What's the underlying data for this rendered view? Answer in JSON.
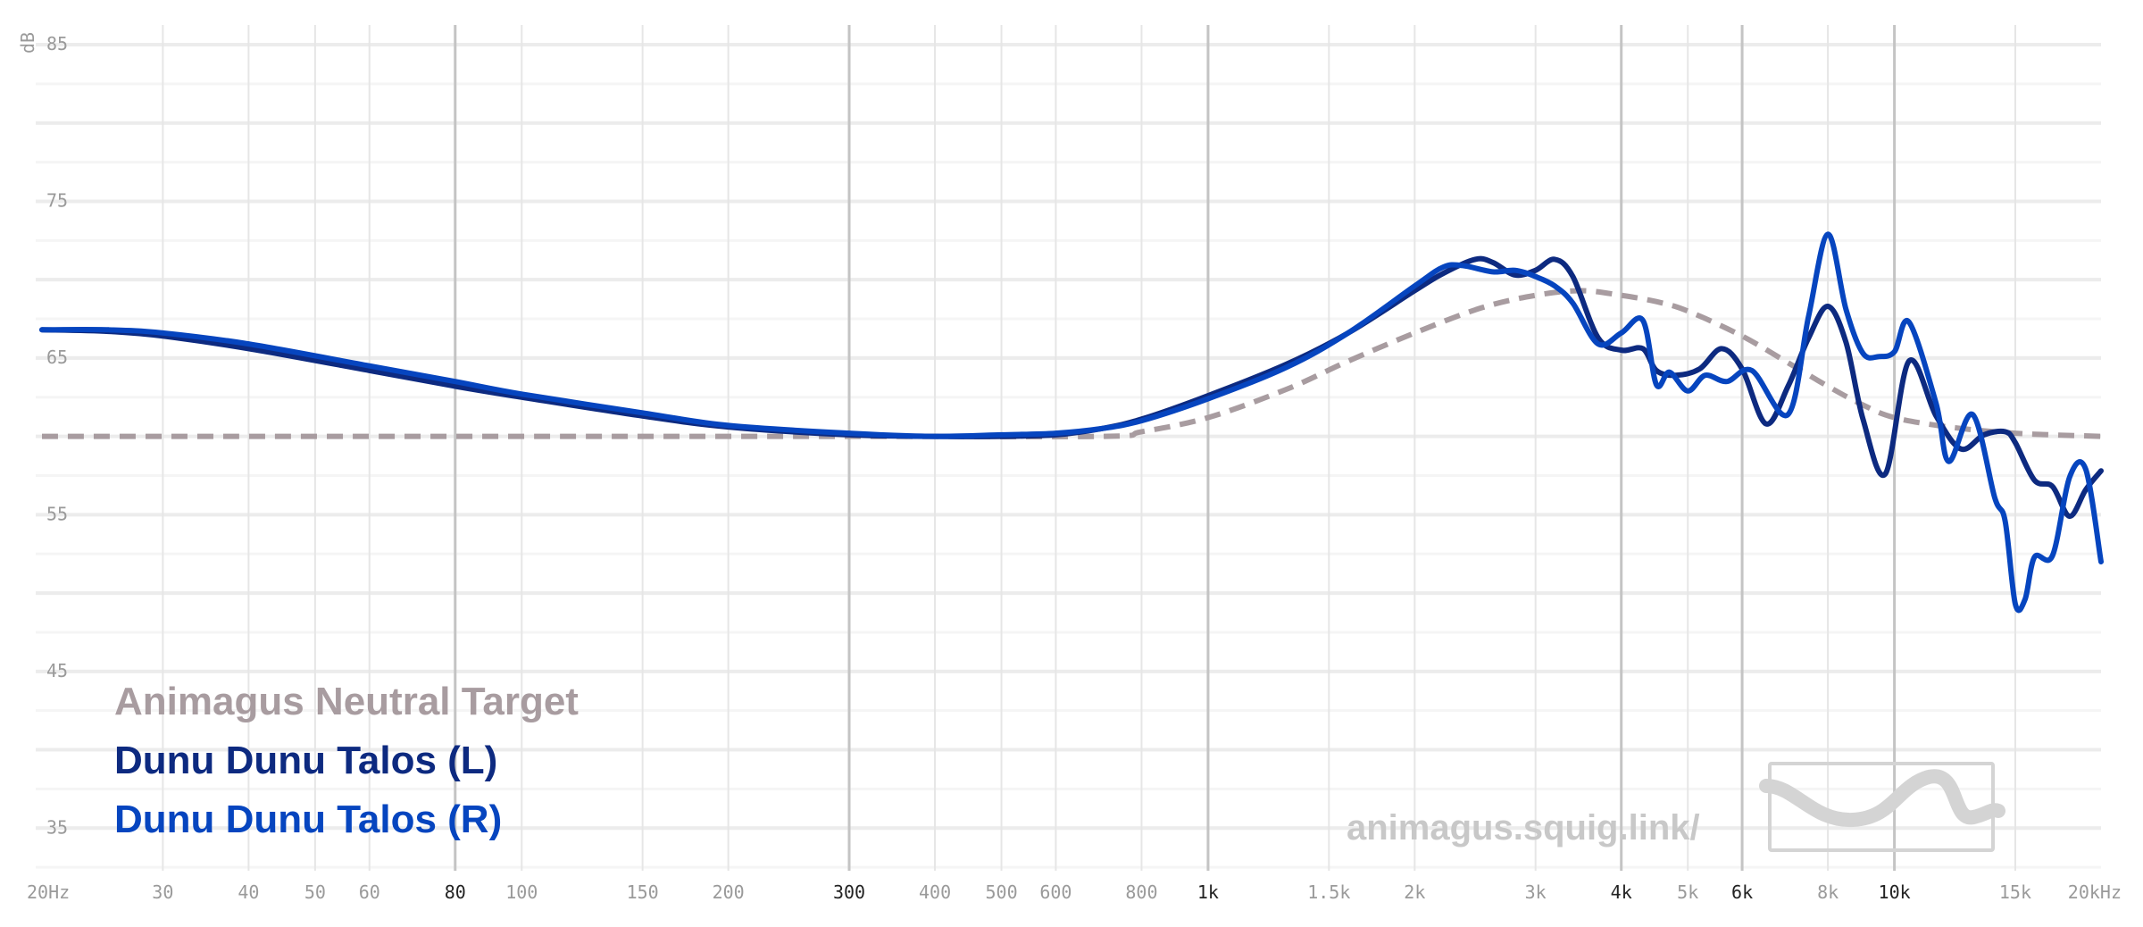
{
  "chart_data": {
    "type": "line",
    "xscale": "log",
    "xlim": [
      20,
      20000
    ],
    "ylim": [
      30,
      85
    ],
    "ylabel": "dB",
    "grid": true,
    "legend_position": "bottom-left",
    "y_ticks": [
      {
        "value": 85,
        "label": "85"
      },
      {
        "value": 75,
        "label": "75"
      },
      {
        "value": 65,
        "label": "65"
      },
      {
        "value": 55,
        "label": "55"
      },
      {
        "value": 45,
        "label": "45"
      },
      {
        "value": 35,
        "label": "35"
      }
    ],
    "x_ticks": [
      {
        "value": 20,
        "label": "20Hz",
        "major": false
      },
      {
        "value": 30,
        "label": "30",
        "major": false
      },
      {
        "value": 40,
        "label": "40",
        "major": false
      },
      {
        "value": 50,
        "label": "50",
        "major": false
      },
      {
        "value": 60,
        "label": "60",
        "major": false
      },
      {
        "value": 80,
        "label": "80",
        "major": true
      },
      {
        "value": 100,
        "label": "100",
        "major": false
      },
      {
        "value": 150,
        "label": "150",
        "major": false
      },
      {
        "value": 200,
        "label": "200",
        "major": false
      },
      {
        "value": 300,
        "label": "300",
        "major": true
      },
      {
        "value": 400,
        "label": "400",
        "major": false
      },
      {
        "value": 500,
        "label": "500",
        "major": false
      },
      {
        "value": 600,
        "label": "600",
        "major": false
      },
      {
        "value": 800,
        "label": "800",
        "major": false
      },
      {
        "value": 1000,
        "label": "1k",
        "major": true
      },
      {
        "value": 1500,
        "label": "1.5k",
        "major": false
      },
      {
        "value": 2000,
        "label": "2k",
        "major": false
      },
      {
        "value": 3000,
        "label": "3k",
        "major": false
      },
      {
        "value": 4000,
        "label": "4k",
        "major": true
      },
      {
        "value": 5000,
        "label": "5k",
        "major": false
      },
      {
        "value": 6000,
        "label": "6k",
        "major": true
      },
      {
        "value": 8000,
        "label": "8k",
        "major": false
      },
      {
        "value": 10000,
        "label": "10k",
        "major": true
      },
      {
        "value": 15000,
        "label": "15k",
        "major": false
      },
      {
        "value": 20000,
        "label": "20kHz",
        "major": false
      }
    ],
    "series": [
      {
        "name": "Animagus Neutral Target",
        "color": "#a89ca0",
        "dashed": true,
        "x": [
          20,
          100,
          300,
          700,
          800,
          1000,
          1300,
          1600,
          2000,
          2500,
          3000,
          3500,
          4000,
          4500,
          5000,
          6000,
          7000,
          8000,
          9000,
          10000,
          12000,
          15000,
          20000
        ],
        "y": [
          60,
          60,
          60,
          60,
          60.3,
          61.2,
          63,
          64.8,
          66.6,
          68.2,
          69,
          69.3,
          69,
          68.6,
          68,
          66.4,
          64.7,
          63.2,
          62,
          61.2,
          60.6,
          60.2,
          60
        ]
      },
      {
        "name": "Dunu Dunu Talos (L)",
        "color": "#0d2a80",
        "dashed": false,
        "x": [
          20,
          25,
          30,
          40,
          60,
          80,
          100,
          150,
          200,
          300,
          400,
          500,
          600,
          700,
          800,
          1000,
          1300,
          1600,
          2000,
          2200,
          2450,
          2600,
          2800,
          3000,
          3200,
          3400,
          3700,
          4000,
          4300,
          4500,
          4800,
          5200,
          5600,
          6000,
          6500,
          7000,
          7500,
          8000,
          8500,
          9000,
          9700,
          10500,
          11500,
          12500,
          13500,
          14500,
          15000,
          16000,
          17000,
          18000,
          19000,
          20000
        ],
        "y": [
          66.8,
          66.7,
          66.4,
          65.6,
          64.2,
          63.2,
          62.5,
          61.3,
          60.6,
          60.1,
          60,
          60,
          60.1,
          60.5,
          61.1,
          62.6,
          64.6,
          66.6,
          69.3,
          70.4,
          71.3,
          71.1,
          70.3,
          70.6,
          71.3,
          70.2,
          66.3,
          65.5,
          65.6,
          64.2,
          63.9,
          64.3,
          65.6,
          64.3,
          60.8,
          63.2,
          66.3,
          68.3,
          66,
          61.1,
          57.6,
          64.8,
          61.3,
          59.2,
          60.1,
          60.3,
          59.6,
          57.2,
          56.8,
          54.9,
          56.6,
          57.8
        ]
      },
      {
        "name": "Dunu Dunu Talos (R)",
        "color": "#0645bf",
        "dashed": false,
        "x": [
          20,
          25,
          30,
          40,
          60,
          80,
          100,
          150,
          200,
          300,
          400,
          500,
          600,
          700,
          800,
          1000,
          1300,
          1600,
          2000,
          2200,
          2350,
          2600,
          2800,
          3000,
          3200,
          3400,
          3700,
          4000,
          4300,
          4500,
          4700,
          5000,
          5300,
          5700,
          6200,
          7000,
          7500,
          8000,
          8500,
          9000,
          9500,
          10000,
          10500,
          11500,
          12000,
          13000,
          14000,
          14500,
          15000,
          15500,
          16000,
          17000,
          18000,
          19000,
          20000
        ],
        "y": [
          66.8,
          66.8,
          66.6,
          65.9,
          64.5,
          63.5,
          62.7,
          61.5,
          60.7,
          60.2,
          60,
          60.1,
          60.2,
          60.5,
          61,
          62.4,
          64.4,
          66.6,
          69.6,
          70.8,
          70.9,
          70.5,
          70.6,
          70.2,
          69.6,
          68.5,
          65.9,
          66.6,
          67.4,
          63.3,
          64.1,
          62.9,
          63.9,
          63.5,
          64.2,
          61.4,
          67.7,
          72.9,
          68.1,
          65.3,
          65.1,
          65.4,
          67.3,
          62.1,
          58.4,
          61.4,
          56.1,
          54.6,
          49.3,
          49.6,
          52.3,
          52.4,
          57.4,
          57.9,
          52
        ]
      }
    ]
  },
  "watermark_text": "animagus.squig.link/"
}
